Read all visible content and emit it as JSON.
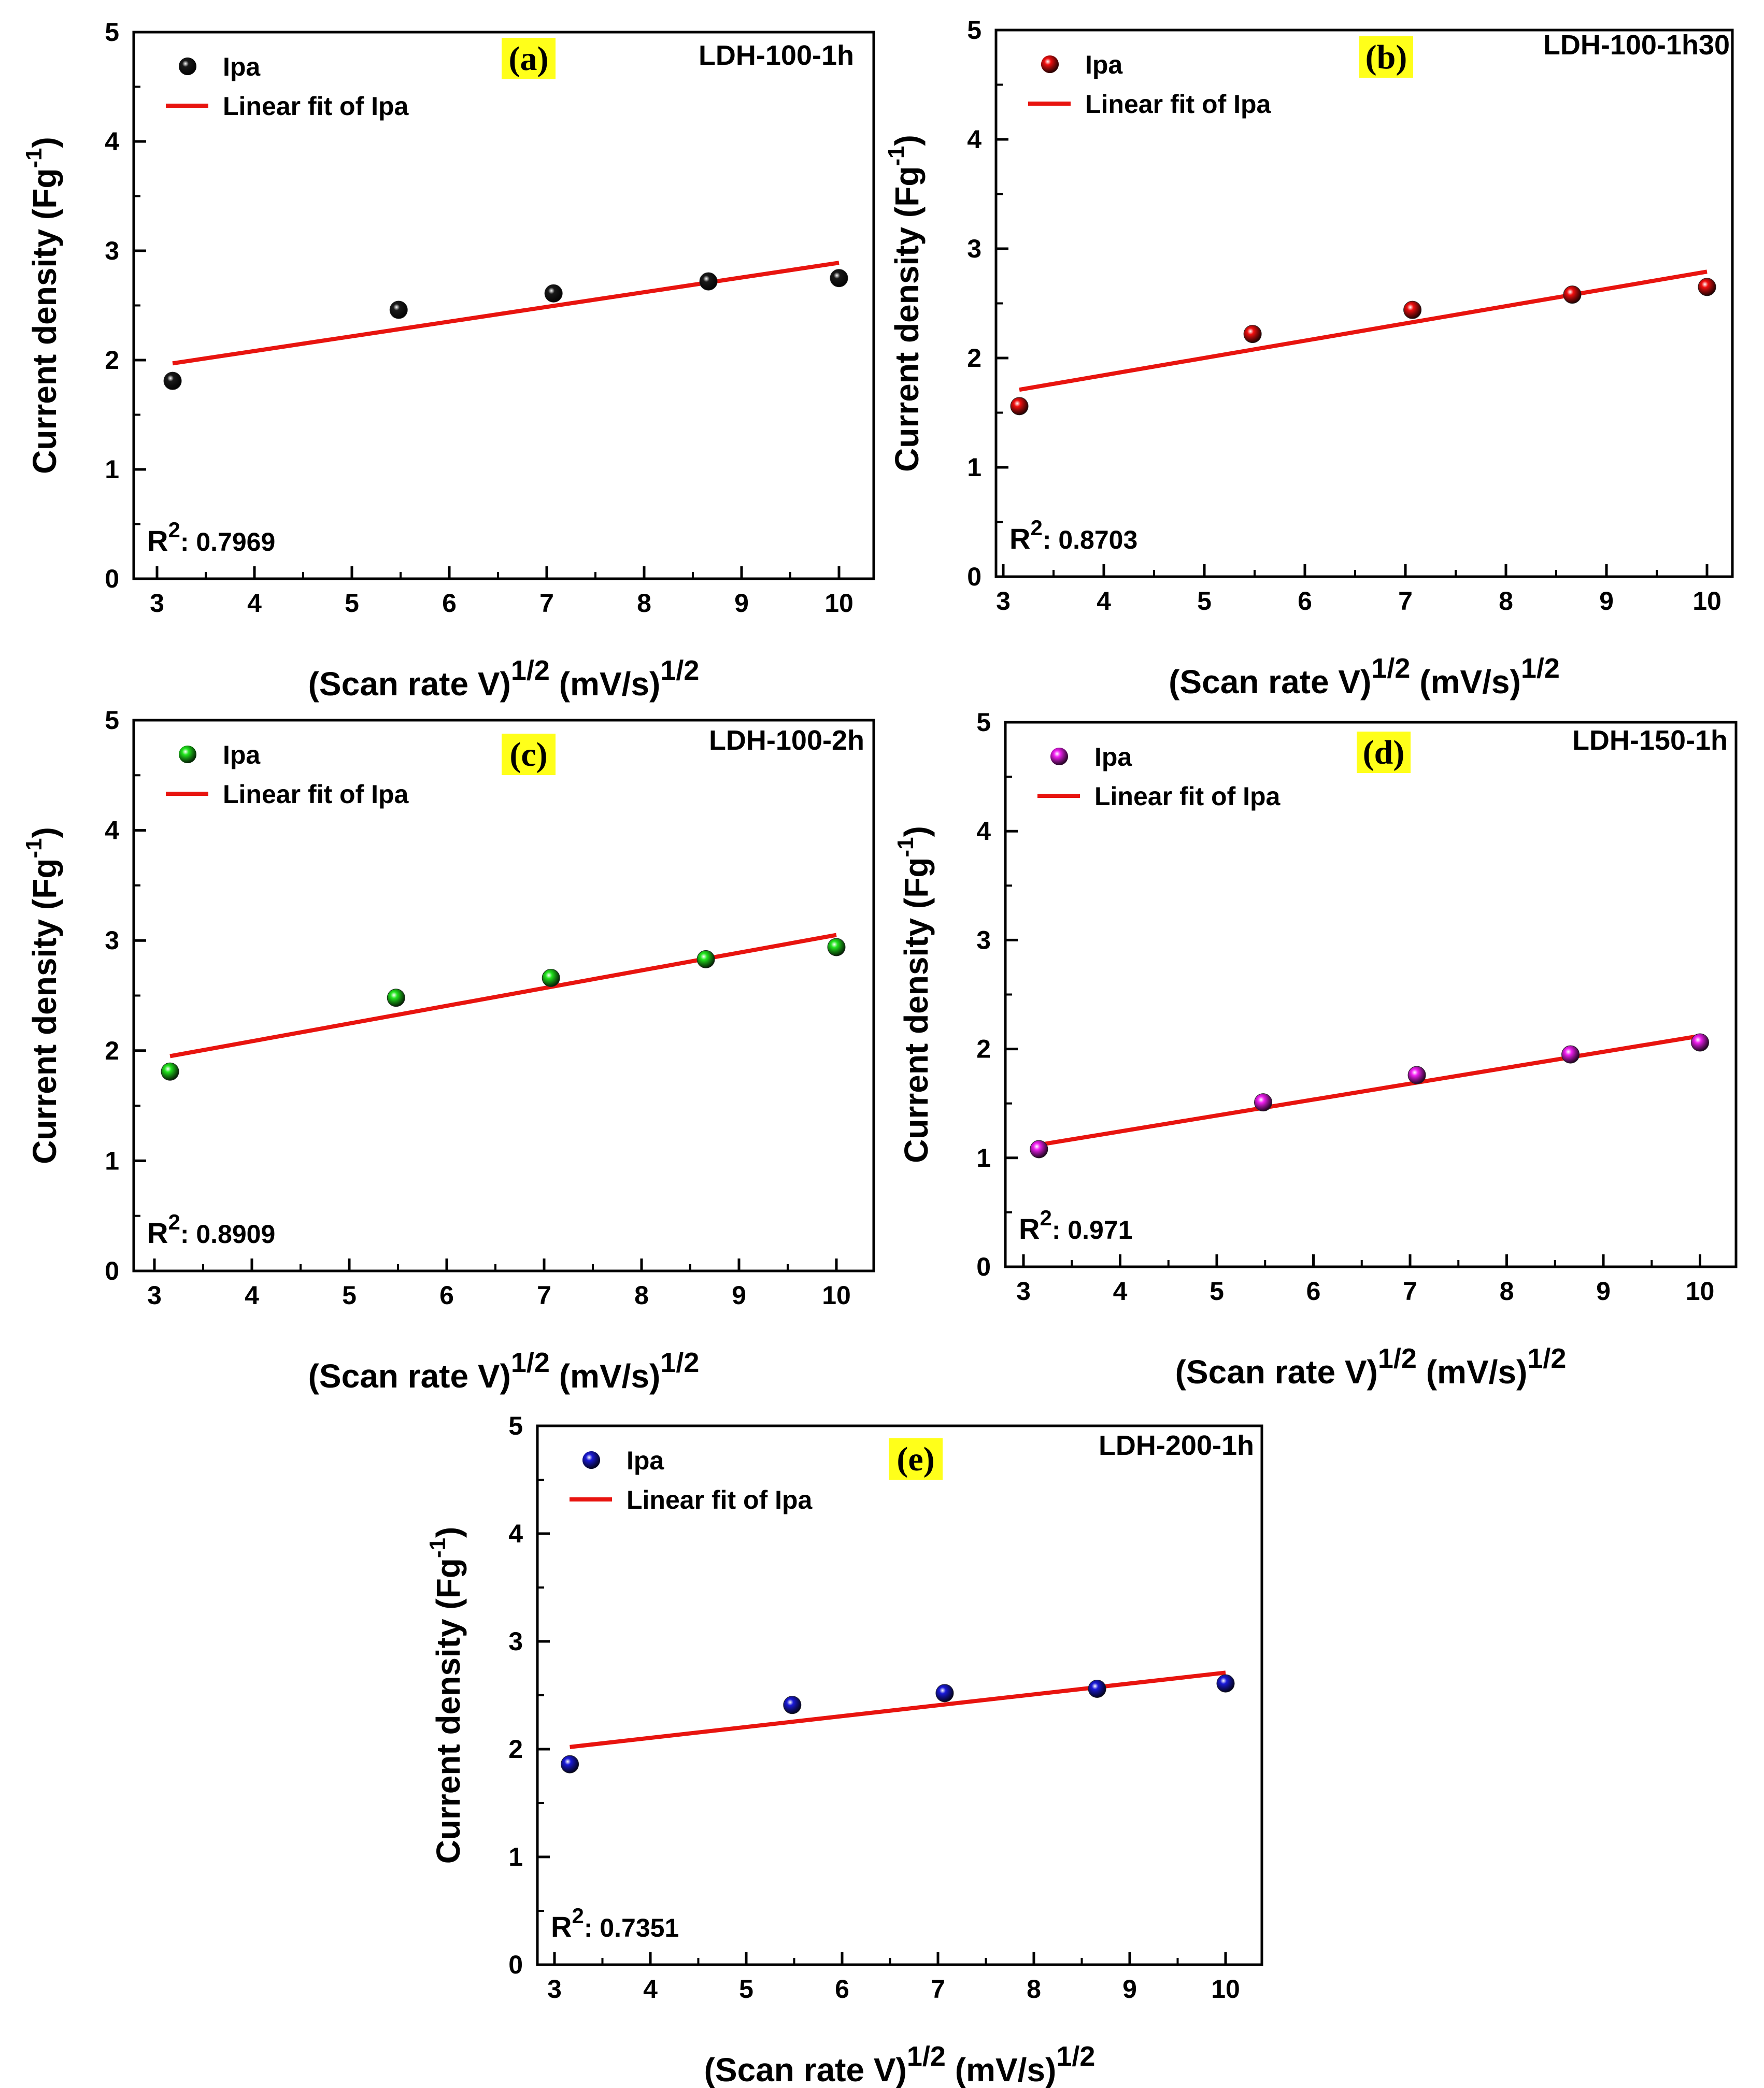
{
  "figure": {
    "colors": {
      "fit_line": "#e8140f",
      "axis": "#000000",
      "panel_letter_bg": "#ffff1a"
    }
  },
  "chart_data": [
    {
      "type": "scatter",
      "panel": "(a)",
      "sample": "LDH-100-1h",
      "xlabel": "(Scan rate V)",
      "xlabel_sup": "1/2",
      "xlabel_unit": "(mV/s)",
      "xlabel_unit_sup": "1/2",
      "ylabel": "Current density (Fg",
      "ylabel_sup": "-1",
      "ylabel_close": ")",
      "xlim": [
        2.9,
        10.5
      ],
      "ylim": [
        0,
        5
      ],
      "xticks": [
        "3",
        "4",
        "5",
        "6",
        "7",
        "8",
        "9",
        "10"
      ],
      "yticks": [
        "0",
        "1",
        "2",
        "3",
        "4",
        "5"
      ],
      "legend": {
        "points": "Ipa",
        "fit": "Linear fit of Ipa",
        "position": "top-left"
      },
      "r2_label": "R",
      "r2_sup": "2",
      "r2_value": ": 0.7969",
      "marker_color": "#1a1a1a",
      "x": [
        3.16,
        5.48,
        7.07,
        8.66,
        10.0
      ],
      "y": [
        1.81,
        2.46,
        2.61,
        2.72,
        2.75
      ],
      "fit": {
        "x": [
          3.16,
          10.0
        ],
        "y": [
          1.97,
          2.89
        ]
      }
    },
    {
      "type": "scatter",
      "panel": "(b)",
      "sample": "LDH-100-1h30",
      "xlabel": "(Scan rate V)",
      "xlabel_sup": "1/2",
      "xlabel_unit": "(mV/s)",
      "xlabel_unit_sup": "1/2",
      "ylabel": "Current density (Fg",
      "ylabel_sup": "-1",
      "ylabel_close": ")",
      "xlim": [
        2.9,
        10.2
      ],
      "ylim": [
        0,
        5
      ],
      "xticks": [
        "3",
        "4",
        "5",
        "6",
        "7",
        "8",
        "9",
        "10"
      ],
      "yticks": [
        "0",
        "1",
        "2",
        "3",
        "4",
        "5"
      ],
      "legend": {
        "points": "Ipa",
        "fit": "Linear fit of Ipa",
        "position": "top-left"
      },
      "r2_label": "R",
      "r2_sup": "2",
      "r2_value": ": 0.8703",
      "marker_color": "#f20f0f",
      "x": [
        3.16,
        5.48,
        7.07,
        8.66,
        10.0
      ],
      "y": [
        1.56,
        2.22,
        2.44,
        2.58,
        2.65
      ],
      "fit": {
        "x": [
          3.16,
          10.0
        ],
        "y": [
          1.71,
          2.79
        ]
      }
    },
    {
      "type": "scatter",
      "panel": "(c)",
      "sample": "LDH-100-2h",
      "xlabel": "(Scan rate V)",
      "xlabel_sup": "1/2",
      "xlabel_unit": "(mV/s)",
      "xlabel_unit_sup": "1/2",
      "ylabel": "Current density (Fg",
      "ylabel_sup": "-1",
      "ylabel_close": ")",
      "xlim": [
        2.9,
        10.5
      ],
      "ylim": [
        0,
        5
      ],
      "xticks": [
        "3",
        "4",
        "5",
        "6",
        "7",
        "8",
        "9",
        "10"
      ],
      "yticks": [
        "0",
        "1",
        "2",
        "3",
        "4",
        "5"
      ],
      "legend": {
        "points": "Ipa",
        "fit": "Linear fit of Ipa",
        "position": "top-left"
      },
      "r2_label": "R",
      "r2_sup": "2",
      "r2_value": ": 0.8909",
      "marker_color": "#22e61e",
      "x": [
        3.16,
        5.48,
        7.07,
        8.66,
        10.0
      ],
      "y": [
        1.81,
        2.48,
        2.66,
        2.83,
        2.94
      ],
      "fit": {
        "x": [
          3.16,
          10.0
        ],
        "y": [
          1.95,
          3.05
        ]
      }
    },
    {
      "type": "scatter",
      "panel": "(d)",
      "sample": "LDH-150-1h",
      "xlabel": "(Scan rate V)",
      "xlabel_sup": "1/2",
      "xlabel_unit": "(mV/s)",
      "xlabel_unit_sup": "1/2",
      "ylabel": "Current density (Fg",
      "ylabel_sup": "-1",
      "ylabel_close": ")",
      "xlim": [
        2.9,
        10.5
      ],
      "ylim": [
        0,
        5
      ],
      "xticks": [
        "3",
        "4",
        "5",
        "6",
        "7",
        "8",
        "9",
        "10"
      ],
      "yticks": [
        "0",
        "1",
        "2",
        "3",
        "4",
        "5"
      ],
      "legend": {
        "points": "Ipa",
        "fit": "Linear fit of Ipa",
        "position": "top-left"
      },
      "r2_label": "R",
      "r2_sup": "2",
      "r2_value": ": 0.971",
      "marker_color": "#f21ff2",
      "x": [
        3.16,
        5.48,
        7.07,
        8.66,
        10.0
      ],
      "y": [
        1.08,
        1.51,
        1.76,
        1.95,
        2.06
      ],
      "fit": {
        "x": [
          3.16,
          10.0
        ],
        "y": [
          1.12,
          2.12
        ]
      }
    },
    {
      "type": "scatter",
      "panel": "(e)",
      "sample": "LDH-200-1h",
      "xlabel": "(Scan rate V)",
      "xlabel_sup": "1/2",
      "xlabel_unit": "(mV/s)",
      "xlabel_unit_sup": "1/2",
      "ylabel": "Current density (Fg",
      "ylabel_sup": "-1",
      "ylabel_close": ")",
      "xlim": [
        2.9,
        10.5
      ],
      "ylim": [
        0,
        5
      ],
      "xticks": [
        "3",
        "4",
        "5",
        "6",
        "7",
        "8",
        "9",
        "10"
      ],
      "yticks": [
        "0",
        "1",
        "2",
        "3",
        "4",
        "5"
      ],
      "legend": {
        "points": "Ipa",
        "fit": "Linear fit of Ipa",
        "position": "top-left"
      },
      "r2_label": "R",
      "r2_sup": "2",
      "r2_value": ": 0.7351",
      "marker_color": "#1a1ad9",
      "x": [
        3.16,
        5.48,
        7.07,
        8.66,
        10.0
      ],
      "y": [
        1.86,
        2.41,
        2.52,
        2.56,
        2.61
      ],
      "fit": {
        "x": [
          3.16,
          10.0
        ],
        "y": [
          2.02,
          2.71
        ]
      }
    }
  ]
}
